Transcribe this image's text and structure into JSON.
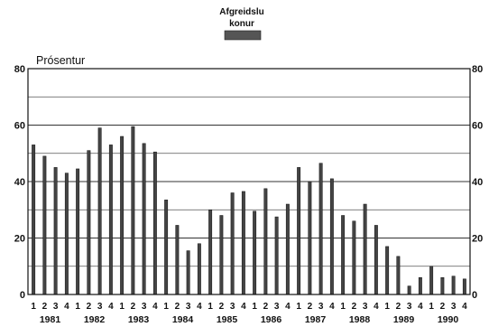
{
  "chart_data": {
    "type": "bar",
    "legend": {
      "label_line1": "Afgreidslu",
      "label_line2": "konur"
    },
    "ylabel": "Prósentur",
    "ylim": [
      0,
      80
    ],
    "yticks": [
      0,
      20,
      40,
      60,
      80
    ],
    "grid": true,
    "bar_color": "#444444",
    "quarter_labels": [
      "1",
      "2",
      "3",
      "4"
    ],
    "years": [
      "1981",
      "1982",
      "1983",
      "1984",
      "1985",
      "1986",
      "1987",
      "1988",
      "1989",
      "1990"
    ],
    "series": [
      {
        "values": [
          53,
          49,
          45,
          43,
          44.5,
          51,
          59,
          53,
          56,
          59.5,
          53.5,
          50.5,
          33.5,
          24.5,
          15.5,
          18,
          30,
          28,
          36,
          36.5,
          29.5,
          37.5,
          27.5,
          32,
          45,
          40,
          46.5,
          41,
          28,
          26,
          32,
          24.5,
          17,
          13.5,
          3,
          6,
          10,
          6,
          6.5,
          5.5
        ]
      }
    ]
  }
}
